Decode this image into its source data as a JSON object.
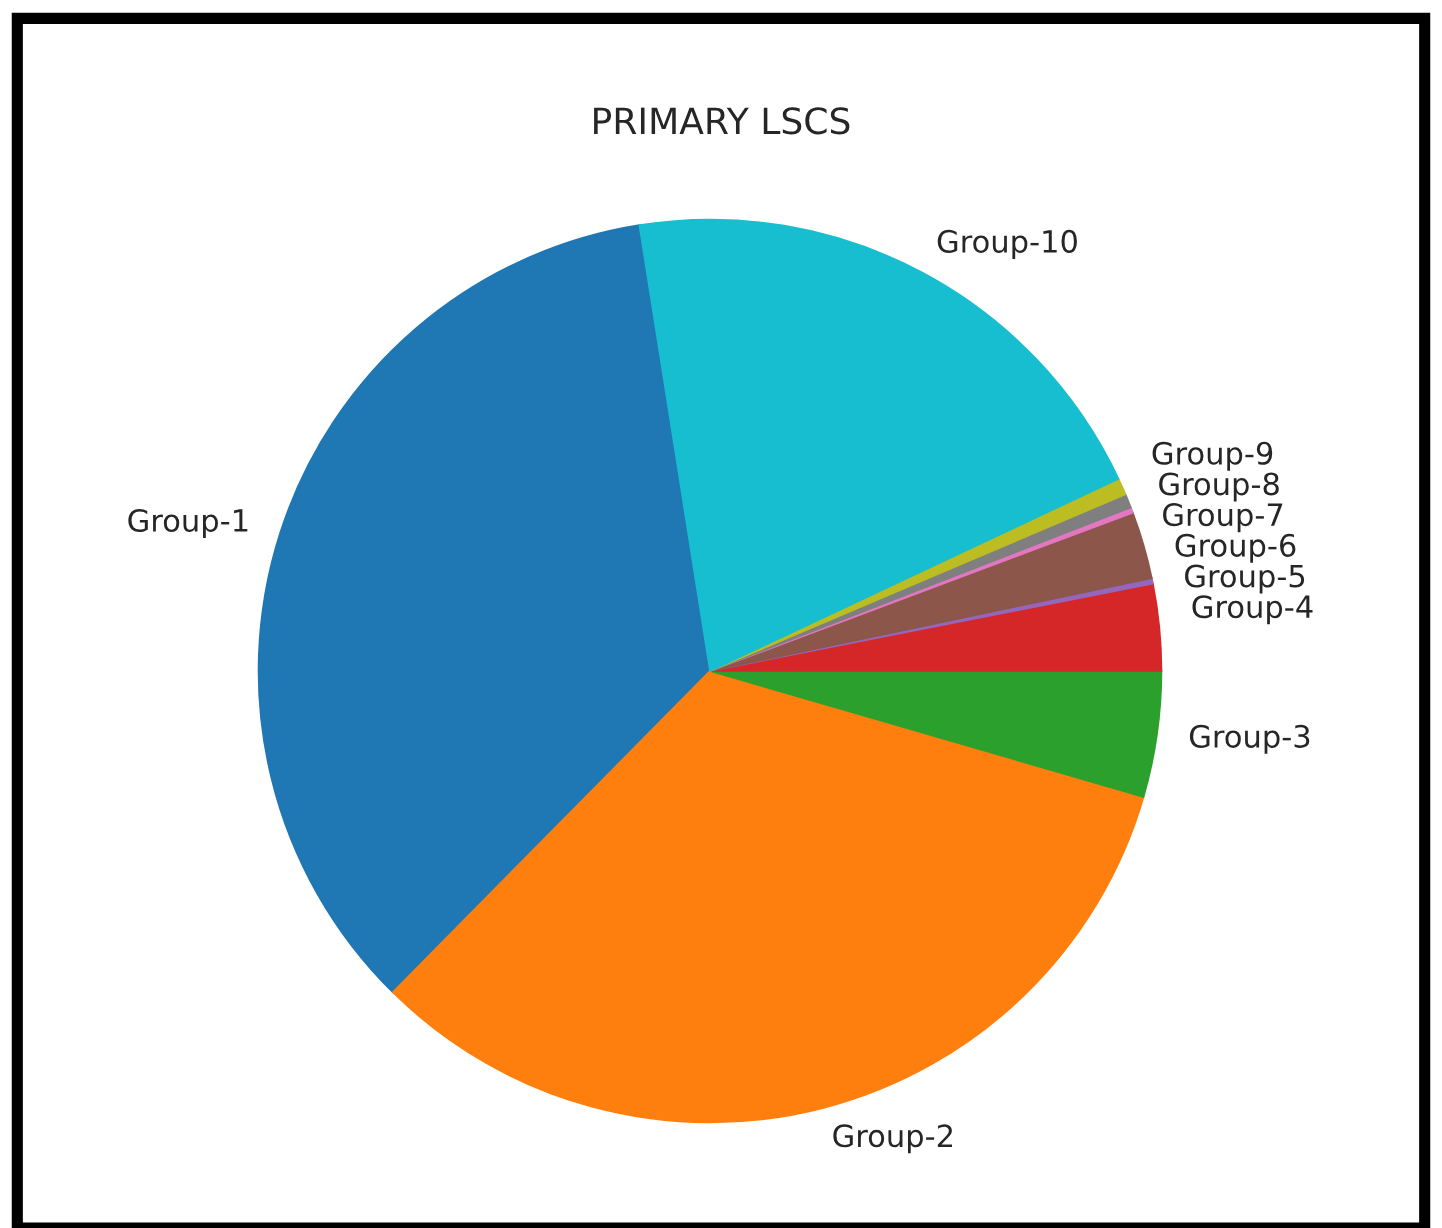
{
  "chart_data": {
    "type": "pie",
    "title": "PRIMARY LSCS",
    "categories": [
      "Group-1",
      "Group-2",
      "Group-3",
      "Group-4",
      "Group-5",
      "Group-6",
      "Group-7",
      "Group-8",
      "Group-9",
      "Group-10"
    ],
    "values": [
      35.1,
      32.9,
      4.5,
      3.1,
      0.2,
      2.4,
      0.2,
      0.5,
      0.6,
      20.5
    ],
    "colors": [
      "#1f77b4",
      "#ff7f0e",
      "#2ca02c",
      "#d62728",
      "#9467bd",
      "#8c564b",
      "#e377c2",
      "#7f7f7f",
      "#bcbd22",
      "#17becf"
    ]
  }
}
